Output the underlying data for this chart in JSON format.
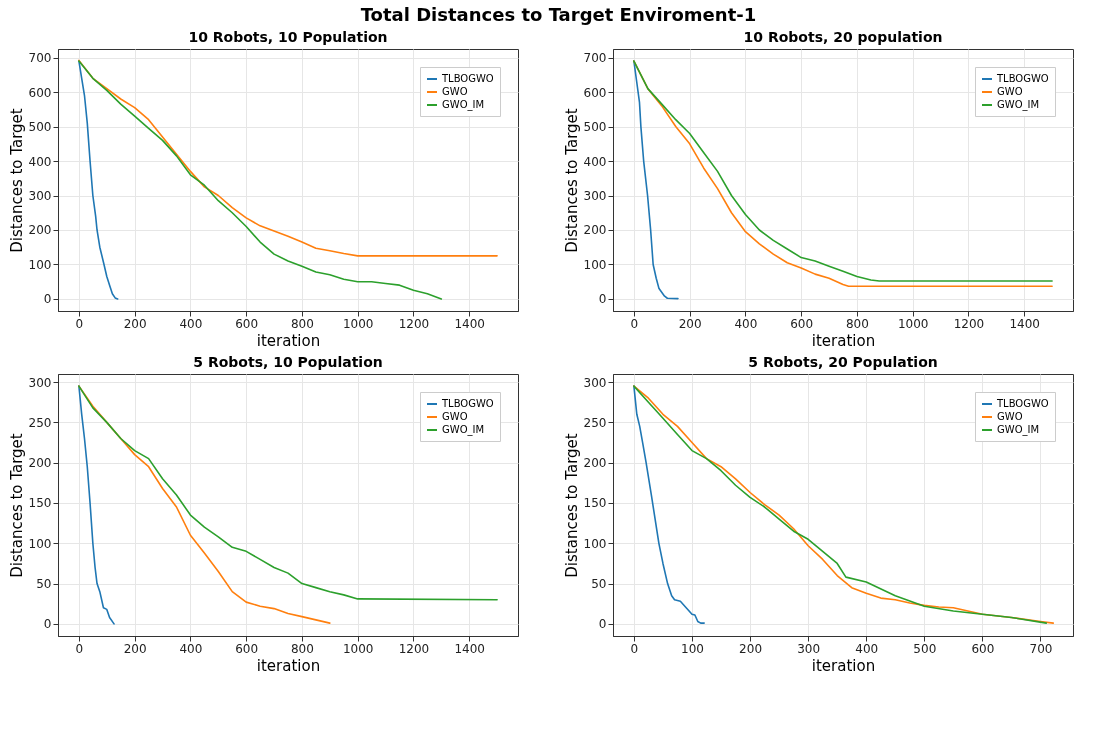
{
  "chart_data": [
    {
      "type": "line",
      "title": "10 Robots, 10 Population",
      "xlabel": "iteration",
      "ylabel": "Distances to Target",
      "annotations": [
        "Total Distances to Target Enviroment-1"
      ],
      "xlim": [
        -75,
        1575
      ],
      "ylim": [
        -35,
        725
      ],
      "xticks": [
        0,
        200,
        400,
        600,
        800,
        1000,
        1200,
        1400
      ],
      "yticks": [
        0,
        100,
        200,
        300,
        400,
        500,
        600,
        700
      ],
      "grid": true,
      "legend": "top right",
      "line_style": "solid",
      "series": [
        {
          "name": "TLBOGWO",
          "color": "#1f77b4",
          "x": [
            0,
            10,
            20,
            30,
            40,
            50,
            60,
            65,
            75,
            90,
            100,
            110,
            120,
            130,
            139
          ],
          "values": [
            690,
            640,
            590,
            510,
            400,
            300,
            240,
            200,
            150,
            100,
            65,
            40,
            15,
            3,
            0
          ]
        },
        {
          "name": "GWO",
          "color": "#ff7f0e",
          "x": [
            0,
            50,
            100,
            150,
            200,
            250,
            300,
            350,
            400,
            450,
            500,
            550,
            600,
            650,
            700,
            750,
            800,
            850,
            900,
            950,
            1000,
            1500
          ],
          "values": [
            692,
            640,
            610,
            580,
            555,
            520,
            470,
            420,
            370,
            325,
            300,
            265,
            235,
            212,
            197,
            182,
            165,
            147,
            140,
            132,
            125,
            125
          ]
        },
        {
          "name": "GWO_IM",
          "color": "#2ca02c",
          "x": [
            0,
            50,
            100,
            150,
            200,
            250,
            300,
            350,
            400,
            450,
            500,
            550,
            600,
            650,
            700,
            750,
            800,
            850,
            900,
            950,
            1000,
            1050,
            1100,
            1150,
            1200,
            1250,
            1300
          ],
          "values": [
            690,
            640,
            605,
            565,
            530,
            495,
            460,
            415,
            360,
            330,
            285,
            250,
            210,
            165,
            130,
            110,
            95,
            78,
            70,
            57,
            50,
            50,
            45,
            40,
            25,
            15,
            0
          ]
        }
      ]
    },
    {
      "type": "line",
      "title": "10 Robots, 20 population",
      "xlabel": "iteration",
      "ylabel": "Distances to Target",
      "xlim": [
        -75,
        1575
      ],
      "ylim": [
        -35,
        725
      ],
      "xticks": [
        0,
        200,
        400,
        600,
        800,
        1000,
        1200,
        1400
      ],
      "yticks": [
        0,
        100,
        200,
        300,
        400,
        500,
        600,
        700
      ],
      "grid": true,
      "legend": "top right",
      "line_style": "solid",
      "series": [
        {
          "name": "TLBOGWO",
          "color": "#1f77b4",
          "x": [
            0,
            10,
            20,
            25,
            35,
            49,
            60,
            69,
            80,
            90,
            110,
            120,
            158
          ],
          "values": [
            690,
            630,
            570,
            500,
            400,
            300,
            200,
            100,
            60,
            30,
            8,
            2,
            1
          ]
        },
        {
          "name": "GWO",
          "color": "#ff7f0e",
          "x": [
            0,
            50,
            100,
            150,
            200,
            250,
            300,
            350,
            400,
            450,
            500,
            550,
            600,
            650,
            700,
            750,
            770,
            1500
          ],
          "values": [
            690,
            610,
            560,
            500,
            450,
            380,
            320,
            250,
            195,
            160,
            130,
            105,
            90,
            72,
            60,
            42,
            37,
            37
          ]
        },
        {
          "name": "GWO_IM",
          "color": "#2ca02c",
          "x": [
            0,
            50,
            100,
            150,
            200,
            250,
            300,
            350,
            400,
            450,
            500,
            550,
            600,
            650,
            700,
            750,
            800,
            850,
            880,
            1500
          ],
          "values": [
            690,
            610,
            565,
            520,
            480,
            425,
            370,
            300,
            245,
            200,
            170,
            145,
            120,
            110,
            95,
            80,
            65,
            55,
            52,
            52
          ]
        }
      ]
    },
    {
      "type": "line",
      "title": "5 Robots, 10 Population",
      "xlabel": "iteration",
      "ylabel": "Distances to Target",
      "xlim": [
        -75,
        1575
      ],
      "ylim": [
        -15,
        310
      ],
      "xticks": [
        0,
        200,
        400,
        600,
        800,
        1000,
        1200,
        1400
      ],
      "yticks": [
        0,
        50,
        100,
        150,
        200,
        250,
        300
      ],
      "grid": true,
      "legend": "top right",
      "line_style": "solid",
      "series": [
        {
          "name": "TLBOGWO",
          "color": "#1f77b4",
          "x": [
            0,
            10,
            20,
            30,
            40,
            50,
            58,
            65,
            75,
            88,
            100,
            110,
            126
          ],
          "values": [
            295,
            260,
            230,
            195,
            150,
            100,
            70,
            50,
            40,
            20,
            18,
            8,
            0
          ]
        },
        {
          "name": "GWO",
          "color": "#ff7f0e",
          "x": [
            0,
            50,
            100,
            150,
            200,
            250,
            300,
            350,
            400,
            450,
            500,
            550,
            600,
            650,
            700,
            750,
            800,
            850,
            900
          ],
          "values": [
            295,
            270,
            250,
            230,
            210,
            195,
            168,
            145,
            110,
            88,
            65,
            40,
            27,
            22,
            19,
            13,
            9,
            5,
            1
          ]
        },
        {
          "name": "GWO_IM",
          "color": "#2ca02c",
          "x": [
            0,
            50,
            100,
            150,
            200,
            250,
            300,
            350,
            400,
            450,
            500,
            550,
            600,
            650,
            700,
            750,
            800,
            850,
            900,
            950,
            1000,
            1500
          ],
          "values": [
            295,
            268,
            250,
            230,
            215,
            205,
            180,
            160,
            135,
            120,
            108,
            95,
            90,
            80,
            70,
            63,
            50,
            45,
            40,
            36,
            31,
            30
          ]
        }
      ]
    },
    {
      "type": "line",
      "title": "5 Robots, 20 Population",
      "xlabel": "iteration",
      "ylabel": "Distances to Target",
      "xlim": [
        -36,
        756
      ],
      "ylim": [
        -15,
        310
      ],
      "xticks": [
        0,
        100,
        200,
        300,
        400,
        500,
        600,
        700
      ],
      "yticks": [
        0,
        50,
        100,
        150,
        200,
        250,
        300
      ],
      "grid": true,
      "legend": "top right",
      "line_style": "solid",
      "series": [
        {
          "name": "TLBOGWO",
          "color": "#1f77b4",
          "x": [
            0,
            5,
            10,
            15,
            21,
            30,
            43,
            50,
            58,
            65,
            70,
            80,
            90,
            100,
            105,
            110,
            115,
            121
          ],
          "values": [
            295,
            260,
            245,
            225,
            200,
            160,
            100,
            75,
            50,
            35,
            30,
            28,
            20,
            12,
            11,
            3,
            1,
            1
          ]
        },
        {
          "name": "GWO",
          "color": "#ff7f0e",
          "x": [
            0,
            25,
            50,
            75,
            100,
            125,
            150,
            175,
            200,
            225,
            250,
            275,
            300,
            325,
            350,
            375,
            400,
            425,
            450,
            475,
            500,
            525,
            550,
            600,
            650,
            700,
            722
          ],
          "values": [
            295,
            280,
            260,
            245,
            225,
            205,
            195,
            180,
            163,
            148,
            135,
            118,
            97,
            80,
            60,
            45,
            38,
            32,
            30,
            26,
            23,
            21,
            20,
            12,
            8,
            3,
            1
          ]
        },
        {
          "name": "GWO_IM",
          "color": "#2ca02c",
          "x": [
            0,
            25,
            50,
            75,
            100,
            125,
            150,
            175,
            200,
            225,
            250,
            275,
            300,
            325,
            350,
            365,
            400,
            450,
            500,
            550,
            600,
            650,
            710
          ],
          "values": [
            295,
            275,
            255,
            235,
            215,
            205,
            190,
            172,
            157,
            145,
            130,
            115,
            105,
            90,
            75,
            58,
            52,
            35,
            22,
            16,
            12,
            8,
            1
          ]
        }
      ]
    }
  ]
}
